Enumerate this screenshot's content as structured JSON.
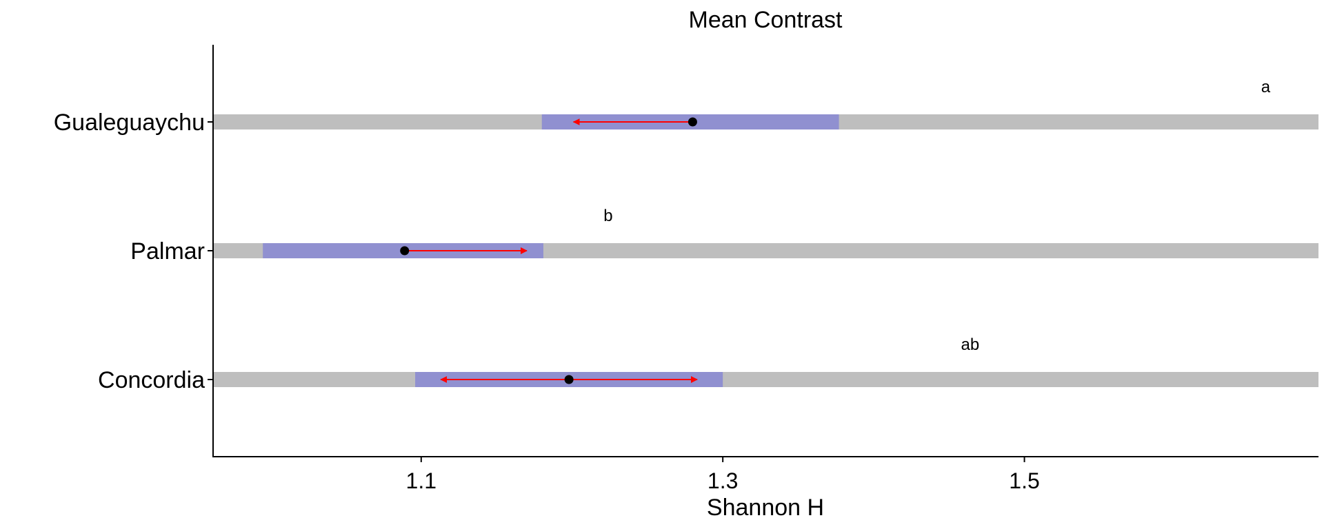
{
  "chart_data": {
    "type": "emmeans-contrast",
    "title": "Mean Contrast",
    "xlabel": "Shannon H",
    "ylabel": "",
    "xlim": [
      0.962,
      1.695
    ],
    "xticks": [
      1.1,
      1.3,
      1.5
    ],
    "xtick_labels": [
      "1.1",
      "1.3",
      "1.5"
    ],
    "grid": false,
    "legend": "none",
    "colors": {
      "background_band": "#bebebe",
      "confidence_interval": "#9090d0",
      "comparison_arrow": "#ff0000",
      "point": "#000000"
    },
    "categories": [
      "Gualeguaychu",
      "Palmar",
      "Concordia"
    ],
    "rows": [
      {
        "category": "Gualeguaychu",
        "mean": 1.28,
        "ci": [
          1.18,
          1.377
        ],
        "arrow": [
          1.201,
          1.28
        ],
        "letter": "a",
        "letter_x": 1.66
      },
      {
        "category": "Palmar",
        "mean": 1.089,
        "ci": [
          0.995,
          1.181
        ],
        "arrow": [
          1.089,
          1.17
        ],
        "letter": "b",
        "letter_x": 1.224
      },
      {
        "category": "Concordia",
        "mean": 1.198,
        "ci": [
          1.096,
          1.3
        ],
        "arrow": [
          1.113,
          1.283
        ],
        "letter": "ab",
        "letter_x": 1.464
      }
    ]
  }
}
